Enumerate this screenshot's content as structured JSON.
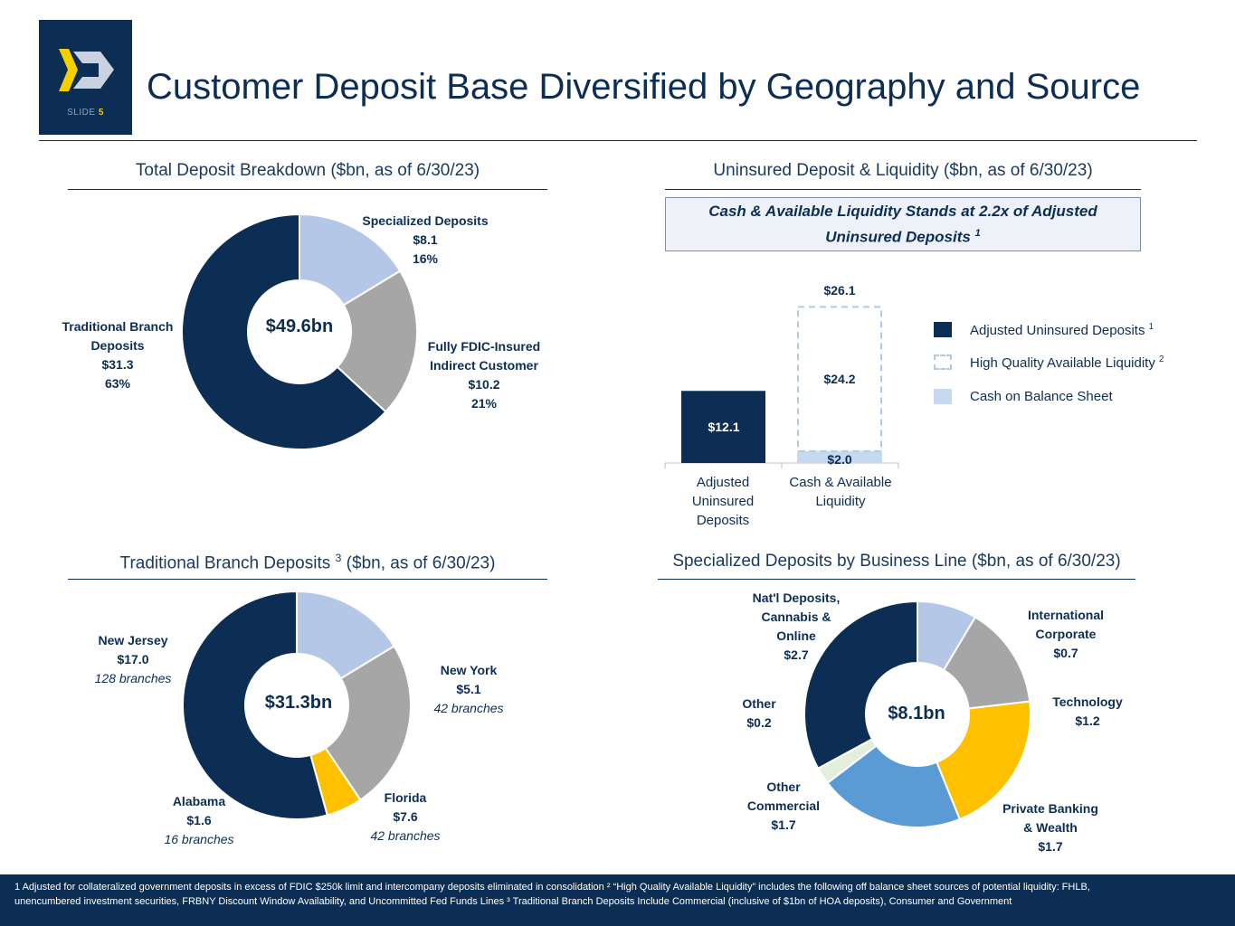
{
  "header": {
    "title": "Customer Deposit Base Diversified by Geography and Source",
    "slide_label": "SLIDE",
    "slide_number": "5"
  },
  "sections": {
    "total": "Total Deposit Breakdown ($bn, as of 6/30/23)",
    "uninsured": "Uninsured Deposit & Liquidity ($bn, as of 6/30/23)",
    "branch": "Traditional Branch Deposits",
    "branch_sup": "3",
    "branch_suffix": "($bn, as of 6/30/23)",
    "specialized": "Specialized Deposits by Business Line ($bn, as of 6/30/23)"
  },
  "callout": {
    "line1": "Cash & Available Liquidity Stands at 2.2x of Adjusted",
    "line2": "Uninsured Deposits",
    "sup": "1"
  },
  "colors": {
    "navy": "#0c2d54",
    "light_blue": "#b4c7e7",
    "gray": "#a6a6a6",
    "gold": "#ffc000",
    "mid_blue": "#5b9bd5",
    "pale_green": "#e2efda"
  },
  "footer": {
    "line1": "1 Adjusted for collateralized government deposits in excess of FDIC $250k limit and intercompany deposits eliminated in consolidation ² “High Quality Available Liquidity” includes the following off balance sheet sources of potential liquidity: FHLB,",
    "line2": "unencumbered investment securities, FRBNY Discount Window Availability, and Uncommitted Fed Funds Lines  ³ Traditional Branch Deposits Include Commercial (inclusive of $1bn of HOA deposits), Consumer and Government"
  },
  "chart_data": [
    {
      "type": "pie",
      "title": "Total Deposit Breakdown ($bn, as of 6/30/23)",
      "center_label": "$49.6bn",
      "slices": [
        {
          "label_lines": [
            "Specialized Deposits"
          ],
          "value": 8.1,
          "value_label": "$8.1",
          "pct_label": "16%",
          "color": "#b4c7e7"
        },
        {
          "label_lines": [
            "Fully FDIC-Insured",
            "Indirect Customer"
          ],
          "value": 10.2,
          "value_label": "$10.2",
          "pct_label": "21%",
          "color": "#a6a6a6"
        },
        {
          "label_lines": [
            "Traditional Branch",
            "Deposits"
          ],
          "value": 31.3,
          "value_label": "$31.3",
          "pct_label": "63%",
          "color": "#0c2d54"
        }
      ]
    },
    {
      "type": "bar",
      "title": "Uninsured Deposit & Liquidity ($bn, as of 6/30/23)",
      "categories": [
        [
          "Adjusted",
          "Uninsured",
          "Deposits"
        ],
        [
          "Cash & Available",
          "Liquidity"
        ]
      ],
      "series": [
        {
          "name": "Adjusted Uninsured Deposits",
          "sup": "1",
          "values": [
            12.1,
            null
          ],
          "labels": [
            "$12.1",
            null
          ],
          "color": "#0c2d54"
        },
        {
          "name": "High Quality Available Liquidity",
          "sup": "2",
          "values": [
            null,
            24.2
          ],
          "labels": [
            null,
            "$24.2"
          ],
          "color": "#b4c7e7"
        },
        {
          "name": "Cash on Balance Sheet",
          "values": [
            null,
            2.0
          ],
          "labels": [
            null,
            "$2.0"
          ],
          "color": "#c5d9f1"
        }
      ],
      "totals": [
        null,
        "$26.1"
      ],
      "total_values": [
        12.1,
        26.1
      ],
      "ylim": [
        0,
        26.1
      ]
    },
    {
      "type": "pie",
      "title": "Traditional Branch Deposits (3) ($bn, as of 6/30/23)",
      "center_label": "$31.3bn",
      "slices": [
        {
          "label_lines": [
            "New York"
          ],
          "value": 5.1,
          "value_label": "$5.1",
          "note": "42 branches",
          "color": "#b4c7e7"
        },
        {
          "label_lines": [
            "Florida"
          ],
          "value": 7.6,
          "value_label": "$7.6",
          "note": "42 branches",
          "color": "#a6a6a6"
        },
        {
          "label_lines": [
            "Alabama"
          ],
          "value": 1.6,
          "value_label": "$1.6",
          "note": "16 branches",
          "color": "#ffc000"
        },
        {
          "label_lines": [
            "New Jersey"
          ],
          "value": 17.0,
          "value_label": "$17.0",
          "note": "128 branches",
          "color": "#0c2d54"
        }
      ]
    },
    {
      "type": "pie",
      "title": "Specialized Deposits by Business Line ($bn, as of 6/30/23)",
      "center_label": "$8.1bn",
      "slices": [
        {
          "label_lines": [
            "International",
            "Corporate"
          ],
          "value": 0.7,
          "value_label": "$0.7",
          "color": "#b4c7e7"
        },
        {
          "label_lines": [
            "Technology"
          ],
          "value": 1.2,
          "value_label": "$1.2",
          "color": "#a6a6a6"
        },
        {
          "label_lines": [
            "Private Banking",
            "& Wealth"
          ],
          "value": 1.7,
          "value_label": "$1.7",
          "color": "#ffc000"
        },
        {
          "label_lines": [
            "Other",
            "Commercial"
          ],
          "value": 1.7,
          "value_label": "$1.7",
          "color": "#5b9bd5"
        },
        {
          "label_lines": [
            "Other"
          ],
          "value": 0.2,
          "value_label": "$0.2",
          "color": "#e2efda"
        },
        {
          "label_lines": [
            "Nat'l Deposits,",
            "Cannabis &",
            "Online"
          ],
          "value": 2.7,
          "value_label": "$2.7",
          "color": "#0c2d54"
        }
      ]
    }
  ]
}
